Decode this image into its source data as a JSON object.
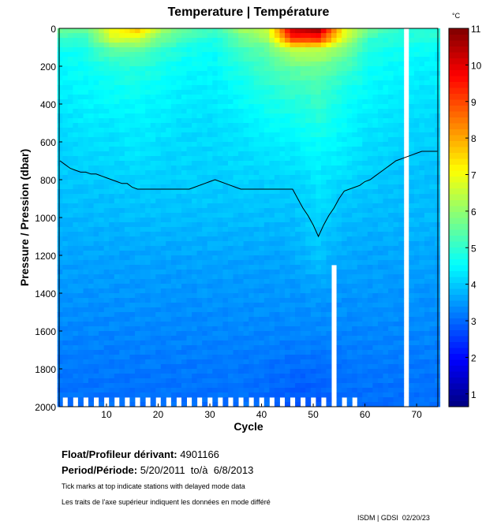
{
  "chart_data": {
    "type": "heatmap",
    "title": "Temperature | Température",
    "xlabel": "Cycle",
    "ylabel": "Pressure / Pression (dbar)",
    "xlim": [
      0.85,
      74.1
    ],
    "ylim": [
      2000,
      0
    ],
    "xticks": [
      10,
      20,
      30,
      40,
      50,
      60,
      70
    ],
    "yticks": [
      0,
      200,
      400,
      600,
      800,
      1000,
      1200,
      1400,
      1600,
      1800,
      2000
    ],
    "colorbar": {
      "unit": "°C",
      "range": [
        0.65,
        11
      ],
      "ticks": [
        1,
        2,
        3,
        4,
        5,
        6,
        7,
        8,
        9,
        10,
        11
      ]
    },
    "contour_level": 4,
    "grid_cycles": [
      1,
      6,
      11,
      16,
      21,
      26,
      31,
      36,
      41,
      46,
      51,
      56,
      61,
      66,
      71,
      74
    ],
    "grid_pressures": [
      0,
      50,
      100,
      200,
      300,
      400,
      500,
      600,
      700,
      800,
      900,
      1000,
      1200,
      1400,
      1600,
      1800,
      2000
    ],
    "temperature": [
      [
        5.5,
        5.5,
        7,
        7.5,
        6,
        5.5,
        5,
        6,
        6.5,
        10,
        10.5,
        7,
        5.5,
        5,
        5,
        5
      ],
      [
        5,
        5,
        6.5,
        6.5,
        5.5,
        5,
        4.8,
        5.5,
        6,
        9,
        9,
        6.5,
        5,
        4.8,
        4.8,
        4.8
      ],
      [
        4.6,
        4.8,
        5.5,
        5.5,
        5,
        4.7,
        4.6,
        5.2,
        5.5,
        6.5,
        6.5,
        5.8,
        4.8,
        4.7,
        4.6,
        4.5
      ],
      [
        4.5,
        4.6,
        4.8,
        4.9,
        4.7,
        4.5,
        4.5,
        4.8,
        5.2,
        5.5,
        5.6,
        5.2,
        4.6,
        4.5,
        4.4,
        4.4
      ],
      [
        4.4,
        4.5,
        4.6,
        4.7,
        4.5,
        4.4,
        4.4,
        4.6,
        4.9,
        5.1,
        5.2,
        4.8,
        4.5,
        4.4,
        4.3,
        4.3
      ],
      [
        4.3,
        4.4,
        4.5,
        4.5,
        4.4,
        4.3,
        4.3,
        4.5,
        4.7,
        4.8,
        5.0,
        4.6,
        4.4,
        4.3,
        4.2,
        4.2
      ],
      [
        4.2,
        4.3,
        4.3,
        4.4,
        4.3,
        4.2,
        4.2,
        4.3,
        4.5,
        4.6,
        4.8,
        4.5,
        4.3,
        4.2,
        4.1,
        4.1
      ],
      [
        4.1,
        4.2,
        4.2,
        4.3,
        4.2,
        4.15,
        4.15,
        4.25,
        4.35,
        4.4,
        4.6,
        4.4,
        4.2,
        4.1,
        4.05,
        4.05
      ],
      [
        4.0,
        4.1,
        4.1,
        4.2,
        4.1,
        4.1,
        4.1,
        4.15,
        4.2,
        4.25,
        4.4,
        4.3,
        4.1,
        4.0,
        3.95,
        3.95
      ],
      [
        3.95,
        3.95,
        4.0,
        4.05,
        4.05,
        4.05,
        4.0,
        4.05,
        4.05,
        4.05,
        4.3,
        4.1,
        4.0,
        3.9,
        3.9,
        3.9
      ],
      [
        3.9,
        3.9,
        3.9,
        3.95,
        3.95,
        3.95,
        3.95,
        3.95,
        3.95,
        3.95,
        4.2,
        3.95,
        3.9,
        3.85,
        3.85,
        3.85
      ],
      [
        3.8,
        3.8,
        3.8,
        3.85,
        3.85,
        3.85,
        3.85,
        3.85,
        3.85,
        3.85,
        4.1,
        3.85,
        3.8,
        3.8,
        3.8,
        3.8
      ],
      [
        3.6,
        3.6,
        3.6,
        3.6,
        3.6,
        3.6,
        3.6,
        3.6,
        3.6,
        3.65,
        3.9,
        3.65,
        3.6,
        3.6,
        3.6,
        3.6
      ],
      [
        3.45,
        3.45,
        3.45,
        3.45,
        3.45,
        3.45,
        3.45,
        3.45,
        3.45,
        3.45,
        3.5,
        3.45,
        3.45,
        3.45,
        3.45,
        3.45
      ],
      [
        3.3,
        3.3,
        3.3,
        3.3,
        3.3,
        3.3,
        3.3,
        3.3,
        3.3,
        3.3,
        3.3,
        3.3,
        3.3,
        3.3,
        3.3,
        3.3
      ],
      [
        3.15,
        3.15,
        3.15,
        3.15,
        3.15,
        3.15,
        3.15,
        3.15,
        3.1,
        3.0,
        3.0,
        3.1,
        3.15,
        3.15,
        3.15,
        3.15
      ],
      [
        3.05,
        3.05,
        3.05,
        3.05,
        3.05,
        3.05,
        3.05,
        3.05,
        3.0,
        2.8,
        2.8,
        3.0,
        3.05,
        3.05,
        3.05,
        3.05
      ]
    ],
    "missing_full_cycles": [
      68
    ],
    "missing_partial": [
      {
        "cycle": 54,
        "from_pressure": 1250
      }
    ]
  },
  "info": {
    "float_label": "Float/Profileur dérivant:",
    "float_id": "4901166",
    "period_label": "Period/Période:",
    "period_value": "5/20/2011  to/à  6/8/2013",
    "note_en": "Tick marks at top indicate stations with delayed mode data",
    "note_fr": "Les traits de l'axe supérieur indiquent les données en mode différé",
    "credit": "ISDM | GDSI  02/20/23"
  }
}
